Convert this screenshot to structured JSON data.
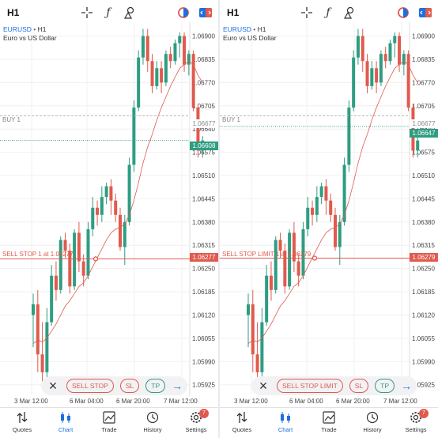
{
  "screens": [
    {
      "timeframe": "H1",
      "symbol": "EURUSD",
      "symbol_tf": "H1",
      "symbol_desc": "Euro vs US Dollar",
      "buy_label": "BUY 1",
      "sell_label": "SELL STOP 1 at 1.06277",
      "price_current": "1.06608",
      "price_buy": "1.06677",
      "price_order": "1.06277",
      "order_button": "SELL STOP",
      "sl": "SL",
      "tp": "TP"
    },
    {
      "timeframe": "H1",
      "symbol": "EURUSD",
      "symbol_tf": "H1",
      "symbol_desc": "Euro vs US Dollar",
      "buy_label": "BUY 1",
      "sell_label": "SELL STOP LIMIT 1 at 1.06279",
      "price_current": "1.06647",
      "price_buy": "1.06677",
      "price_order": "1.06279",
      "order_button": "SELL STOP LIMIT",
      "sl": "SL",
      "tp": "TP"
    }
  ],
  "y_ticks": [
    "1.06900",
    "1.06835",
    "1.06770",
    "1.06705",
    "1.06640",
    "1.06575",
    "1.06510",
    "1.06445",
    "1.06380",
    "1.06315",
    "1.06250",
    "1.06185",
    "1.06120",
    "1.06055",
    "1.05990",
    "1.05925"
  ],
  "x_ticks": [
    "3 Mar 12:00",
    "6 Mar 04:00",
    "6 Mar 20:00",
    "7 Mar 12:00"
  ],
  "tabs": [
    "Quotes",
    "Chart",
    "Trade",
    "History",
    "Settings"
  ],
  "settings_badge": "7",
  "colors": {
    "bull": "#2e9d82",
    "bear": "#e05a4e",
    "accent": "#1d6fe0",
    "ma": "#e05a4e"
  },
  "chart_data": {
    "type": "candlestick",
    "candles": [
      [
        1.0612,
        1.0615,
        1.0603,
        1.0618
      ],
      [
        1.0615,
        1.0601,
        1.0596,
        1.0619
      ],
      [
        1.0601,
        1.0596,
        1.0593,
        1.061
      ],
      [
        1.0596,
        1.061,
        1.0594,
        1.0614
      ],
      [
        1.061,
        1.0623,
        1.0609,
        1.0626
      ],
      [
        1.0623,
        1.0619,
        1.0616,
        1.0627
      ],
      [
        1.0619,
        1.0633,
        1.0618,
        1.0634
      ],
      [
        1.0633,
        1.063,
        1.0628,
        1.0635
      ],
      [
        1.063,
        1.062,
        1.0618,
        1.0632
      ],
      [
        1.062,
        1.0635,
        1.0619,
        1.0636
      ],
      [
        1.0635,
        1.0627,
        1.0624,
        1.0638
      ],
      [
        1.0627,
        1.0623,
        1.062,
        1.0629
      ],
      [
        1.0623,
        1.0636,
        1.0622,
        1.0638
      ],
      [
        1.0636,
        1.0642,
        1.0634,
        1.0645
      ],
      [
        1.0642,
        1.064,
        1.0637,
        1.0644
      ],
      [
        1.064,
        1.0645,
        1.0638,
        1.0648
      ],
      [
        1.0645,
        1.0648,
        1.0643,
        1.0649
      ],
      [
        1.0648,
        1.0644,
        1.064,
        1.065
      ],
      [
        1.0644,
        1.064,
        1.0638,
        1.0646
      ],
      [
        1.064,
        1.0631,
        1.063,
        1.0642
      ],
      [
        1.0631,
        1.0638,
        1.0626,
        1.064
      ],
      [
        1.0638,
        1.0654,
        1.0637,
        1.0656
      ],
      [
        1.0654,
        1.067,
        1.0652,
        1.0672
      ],
      [
        1.067,
        1.0684,
        1.0669,
        1.0686
      ],
      [
        1.0684,
        1.069,
        1.0682,
        1.0692
      ],
      [
        1.069,
        1.0683,
        1.068,
        1.0692
      ],
      [
        1.0683,
        1.0676,
        1.0674,
        1.0685
      ],
      [
        1.0676,
        1.0681,
        1.0675,
        1.0683
      ],
      [
        1.0681,
        1.0677,
        1.0674,
        1.0683
      ],
      [
        1.0677,
        1.0685,
        1.0676,
        1.0686
      ],
      [
        1.0685,
        1.0683,
        1.0681,
        1.0687
      ],
      [
        1.0683,
        1.0688,
        1.0682,
        1.0689
      ],
      [
        1.0688,
        1.069,
        1.0684,
        1.0691
      ],
      [
        1.069,
        1.0682,
        1.068,
        1.0691
      ],
      [
        1.0682,
        1.0685,
        1.0679,
        1.0686
      ],
      [
        1.0685,
        1.067,
        1.0669,
        1.0686
      ],
      [
        1.067,
        1.0658,
        1.0656,
        1.0671
      ],
      [
        1.0658,
        1.06608,
        1.0656,
        1.0662
      ]
    ],
    "ma": [
      1.0604,
      1.0605,
      1.06045,
      1.06055,
      1.06075,
      1.06095,
      1.0612,
      1.06145,
      1.0616,
      1.0618,
      1.062,
      1.0621,
      1.0623,
      1.06255,
      1.0628,
      1.06305,
      1.0633,
      1.0635,
      1.0636,
      1.06365,
      1.06375,
      1.064,
      1.0644,
      1.0649,
      1.06545,
      1.0659,
      1.06625,
      1.06665,
      1.067,
      1.0673,
      1.0676,
      1.06785,
      1.0681,
      1.0682,
      1.0683,
      1.0682,
      1.0679,
      1.0677
    ],
    "ylim": [
      1.059,
      1.0693
    ]
  }
}
